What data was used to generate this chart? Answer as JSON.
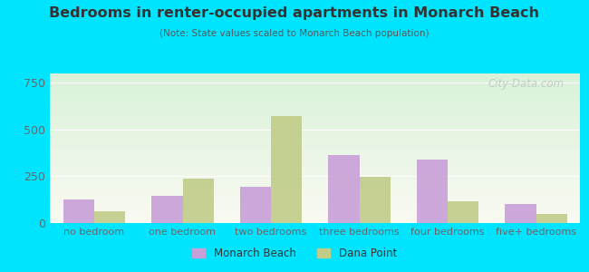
{
  "title": "Bedrooms in renter-occupied apartments in Monarch Beach",
  "subtitle": "(Note: State values scaled to Monarch Beach population)",
  "categories": [
    "no bedroom",
    "one bedroom",
    "two bedrooms",
    "three bedrooms",
    "four bedrooms",
    "five+ bedrooms"
  ],
  "monarch_beach": [
    125,
    145,
    195,
    365,
    340,
    100
  ],
  "dana_point": [
    65,
    240,
    570,
    245,
    115,
    50
  ],
  "monarch_color": "#c8a0d8",
  "dana_color": "#c0cc88",
  "ylim": [
    0,
    800
  ],
  "yticks": [
    0,
    250,
    500,
    750
  ],
  "bar_width": 0.35,
  "bg_outer": "#00e5ff",
  "title_color": "#333333",
  "subtitle_color": "#555555",
  "axis_color": "#666666",
  "watermark": "City-Data.com",
  "watermark_color": "#c0c0c0",
  "grid_color": "#dddddd"
}
